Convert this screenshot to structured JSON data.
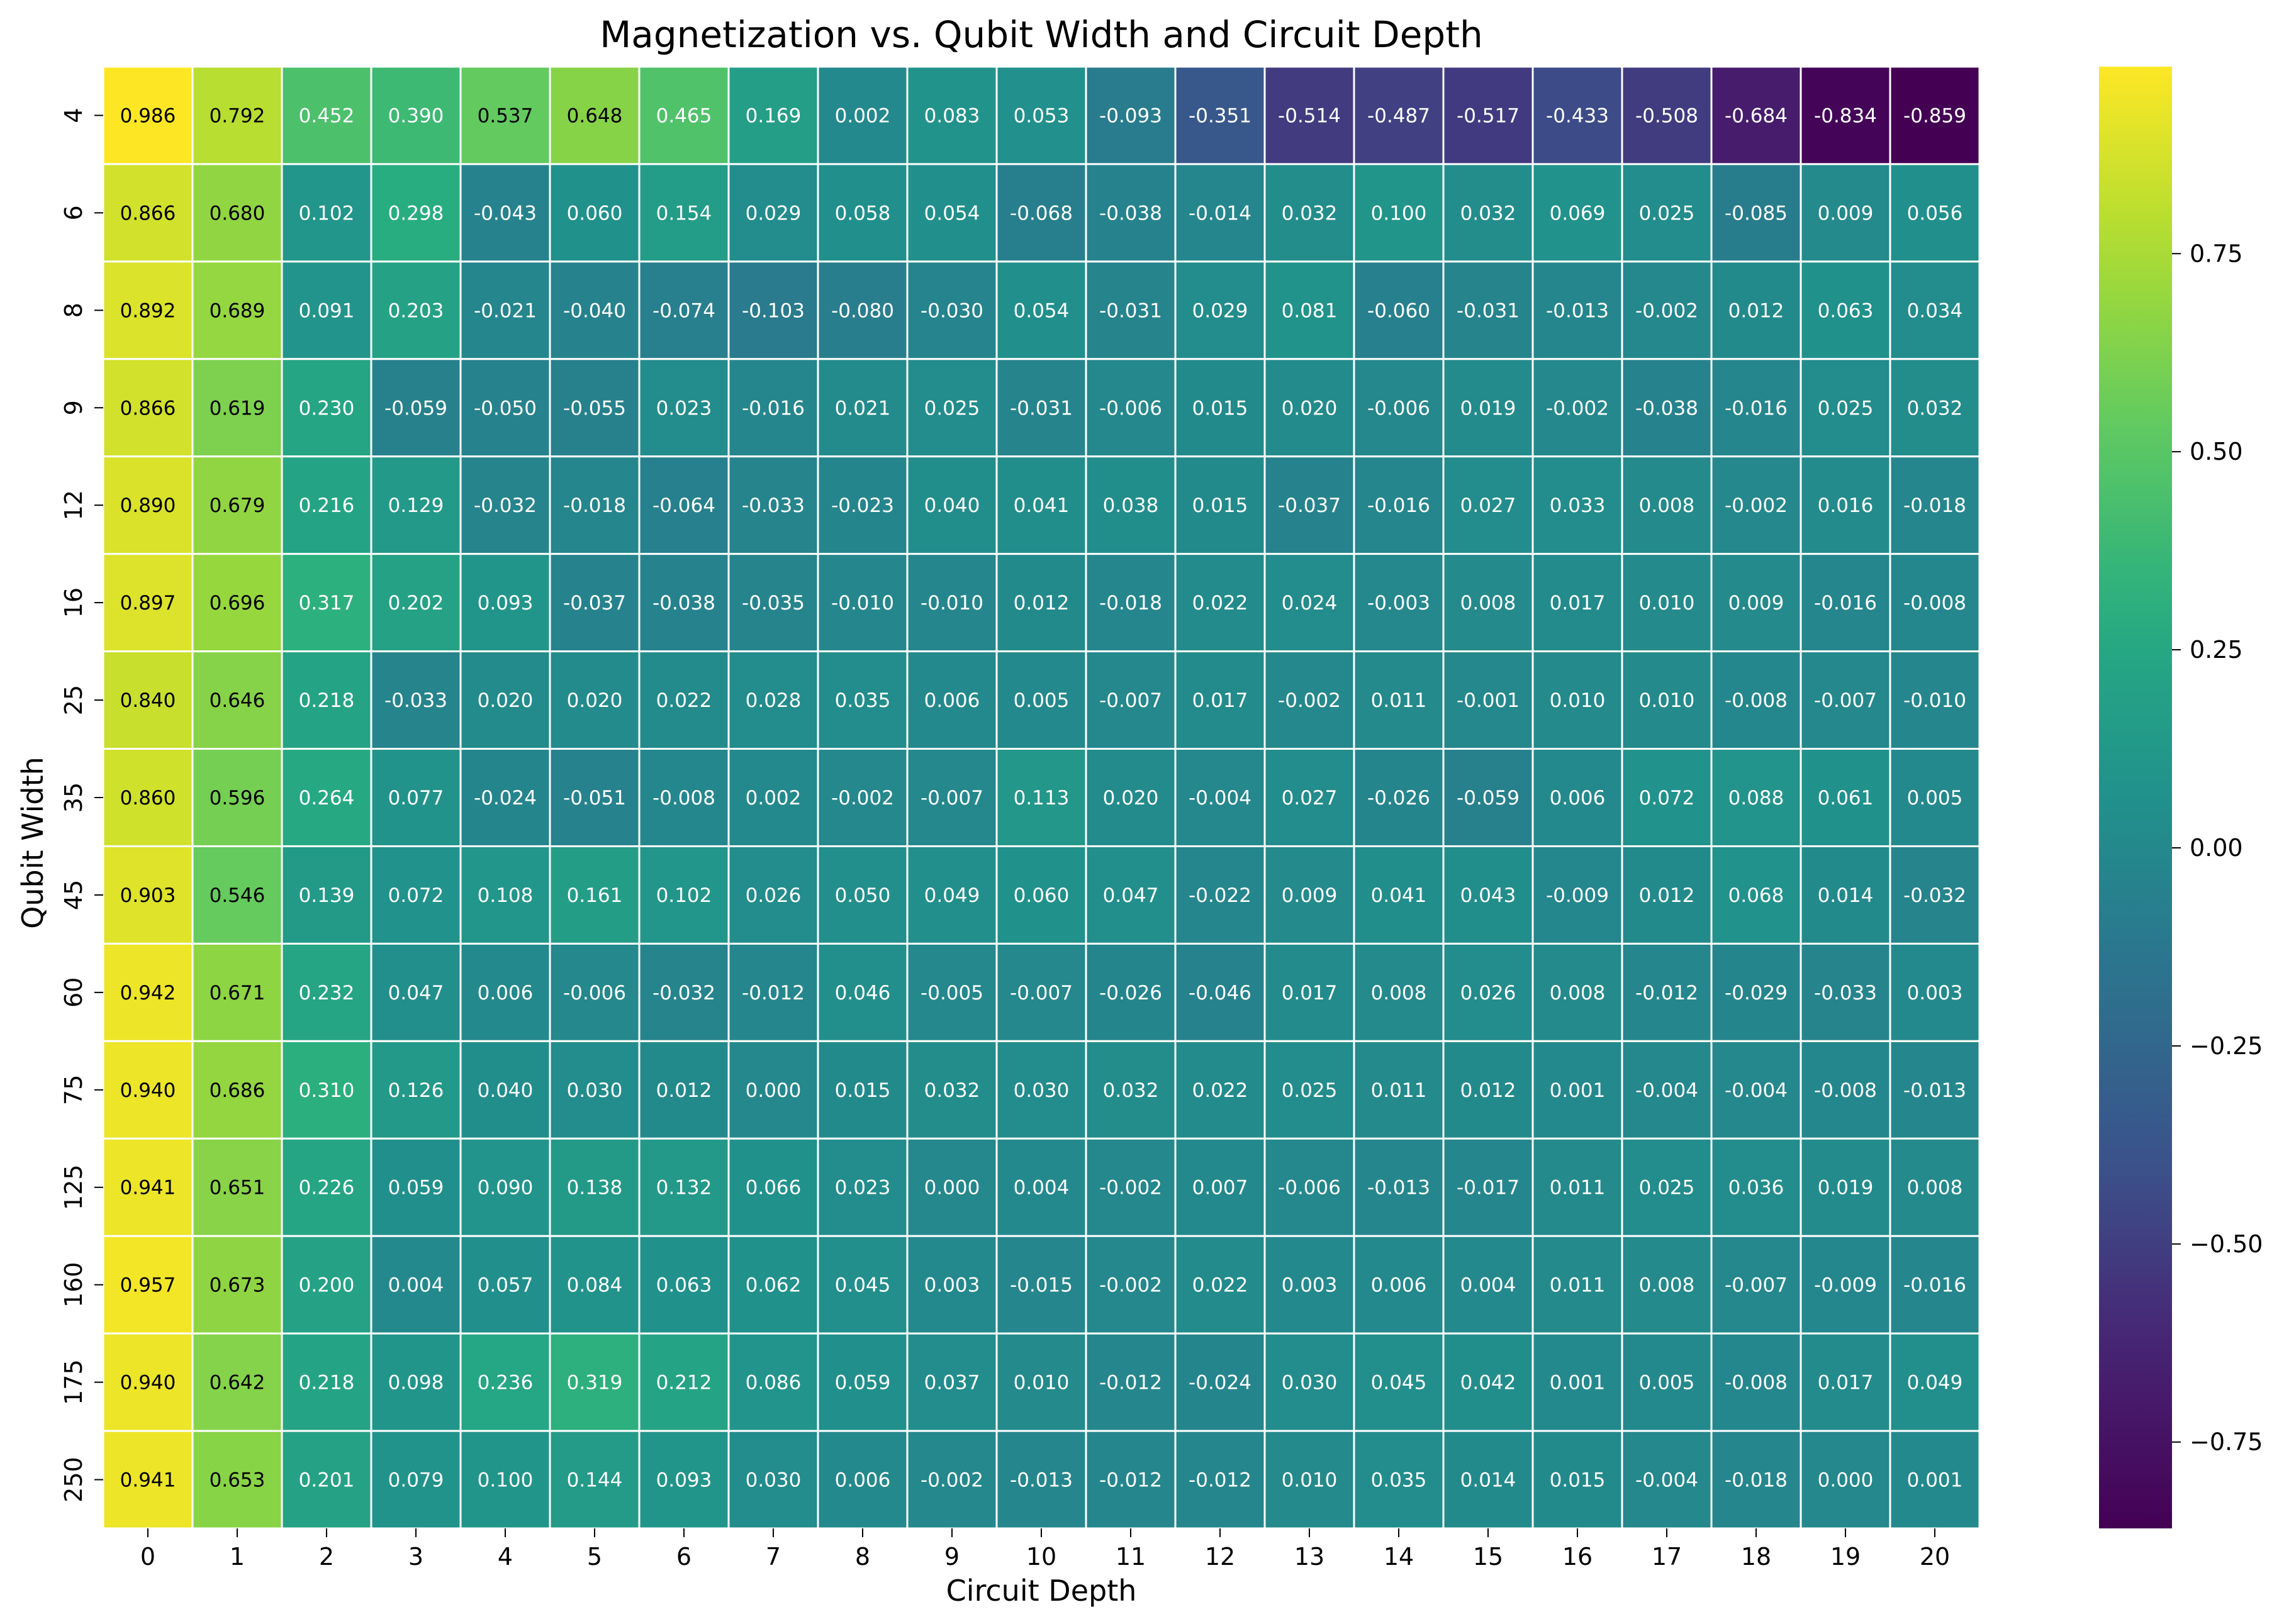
{
  "chart_data": {
    "type": "heatmap",
    "title": "Magnetization vs. Qubit Width and Circuit Depth",
    "xlabel": "Circuit Depth",
    "ylabel": "Qubit Width",
    "x": [
      "0",
      "1",
      "2",
      "3",
      "4",
      "5",
      "6",
      "7",
      "8",
      "9",
      "10",
      "11",
      "12",
      "13",
      "14",
      "15",
      "16",
      "17",
      "18",
      "19",
      "20"
    ],
    "y": [
      "4",
      "6",
      "8",
      "9",
      "12",
      "16",
      "25",
      "35",
      "45",
      "60",
      "75",
      "125",
      "160",
      "175",
      "250"
    ],
    "values": [
      [
        0.986,
        0.792,
        0.452,
        0.39,
        0.537,
        0.648,
        0.465,
        0.169,
        0.002,
        0.083,
        0.053,
        -0.093,
        -0.351,
        -0.514,
        -0.487,
        -0.517,
        -0.433,
        -0.508,
        -0.684,
        -0.834,
        -0.859
      ],
      [
        0.866,
        0.68,
        0.102,
        0.298,
        -0.043,
        0.06,
        0.154,
        0.029,
        0.058,
        0.054,
        -0.068,
        -0.038,
        -0.014,
        0.032,
        0.1,
        0.032,
        0.069,
        0.025,
        -0.085,
        0.009,
        0.056
      ],
      [
        0.892,
        0.689,
        0.091,
        0.203,
        -0.021,
        -0.04,
        -0.074,
        -0.103,
        -0.08,
        -0.03,
        0.054,
        -0.031,
        0.029,
        0.081,
        -0.06,
        -0.031,
        -0.013,
        -0.002,
        0.012,
        0.063,
        0.034
      ],
      [
        0.866,
        0.619,
        0.23,
        -0.059,
        -0.05,
        -0.055,
        0.023,
        -0.016,
        0.021,
        0.025,
        -0.031,
        -0.006,
        0.015,
        0.02,
        -0.006,
        0.019,
        -0.002,
        -0.038,
        -0.016,
        0.025,
        0.032
      ],
      [
        0.89,
        0.679,
        0.216,
        0.129,
        -0.032,
        -0.018,
        -0.064,
        -0.033,
        -0.023,
        0.04,
        0.041,
        0.038,
        0.015,
        -0.037,
        -0.016,
        0.027,
        0.033,
        0.008,
        -0.002,
        0.016,
        -0.018
      ],
      [
        0.897,
        0.696,
        0.317,
        0.202,
        0.093,
        -0.037,
        -0.038,
        -0.035,
        -0.01,
        -0.01,
        0.012,
        -0.018,
        0.022,
        0.024,
        -0.003,
        0.008,
        0.017,
        0.01,
        0.009,
        -0.016,
        -0.008
      ],
      [
        0.84,
        0.646,
        0.218,
        -0.033,
        0.02,
        0.02,
        0.022,
        0.028,
        0.035,
        0.006,
        0.005,
        -0.007,
        0.017,
        -0.002,
        0.011,
        -0.001,
        0.01,
        0.01,
        -0.008,
        -0.007,
        -0.01
      ],
      [
        0.86,
        0.596,
        0.264,
        0.077,
        -0.024,
        -0.051,
        -0.008,
        0.002,
        -0.002,
        -0.007,
        0.113,
        0.02,
        -0.004,
        0.027,
        -0.026,
        -0.059,
        0.006,
        0.072,
        0.088,
        0.061,
        0.005
      ],
      [
        0.903,
        0.546,
        0.139,
        0.072,
        0.108,
        0.161,
        0.102,
        0.026,
        0.05,
        0.049,
        0.06,
        0.047,
        -0.022,
        0.009,
        0.041,
        0.043,
        -0.009,
        0.012,
        0.068,
        0.014,
        -0.032
      ],
      [
        0.942,
        0.671,
        0.232,
        0.047,
        0.006,
        -0.006,
        -0.032,
        -0.012,
        0.046,
        -0.005,
        -0.007,
        -0.026,
        -0.046,
        0.017,
        0.008,
        0.026,
        0.008,
        -0.012,
        -0.029,
        -0.033,
        0.003
      ],
      [
        0.94,
        0.686,
        0.31,
        0.126,
        0.04,
        0.03,
        0.012,
        0.0,
        0.015,
        0.032,
        0.03,
        0.032,
        0.022,
        0.025,
        0.011,
        0.012,
        0.001,
        -0.004,
        -0.004,
        -0.008,
        -0.013
      ],
      [
        0.941,
        0.651,
        0.226,
        0.059,
        0.09,
        0.138,
        0.132,
        0.066,
        0.023,
        0.0,
        0.004,
        -0.002,
        0.007,
        -0.006,
        -0.013,
        -0.017,
        0.011,
        0.025,
        0.036,
        0.019,
        0.008
      ],
      [
        0.957,
        0.673,
        0.2,
        0.004,
        0.057,
        0.084,
        0.063,
        0.062,
        0.045,
        0.003,
        -0.015,
        -0.002,
        0.022,
        0.003,
        0.006,
        0.004,
        0.011,
        0.008,
        -0.007,
        -0.009,
        -0.016
      ],
      [
        0.94,
        0.642,
        0.218,
        0.098,
        0.236,
        0.319,
        0.212,
        0.086,
        0.059,
        0.037,
        0.01,
        -0.012,
        -0.024,
        0.03,
        0.045,
        0.042,
        0.001,
        0.005,
        -0.008,
        0.017,
        0.049
      ],
      [
        0.941,
        0.653,
        0.201,
        0.079,
        0.1,
        0.144,
        0.093,
        0.03,
        0.006,
        -0.002,
        -0.013,
        -0.012,
        -0.012,
        0.01,
        0.035,
        0.014,
        0.015,
        -0.004,
        -0.018,
        0.0,
        0.001
      ]
    ],
    "colormap": "viridis",
    "vmin": -0.859,
    "vmax": 0.986,
    "colorbar_ticks": [
      0.75,
      0.5,
      0.25,
      0.0,
      -0.25,
      -0.5,
      -0.75
    ],
    "colorbar_tick_labels": [
      "0.75",
      "0.50",
      "0.25",
      "0.00",
      "−0.25",
      "−0.50",
      "−0.75"
    ],
    "legend": "colorbar-right",
    "cell_border_color": "#ffffff"
  }
}
